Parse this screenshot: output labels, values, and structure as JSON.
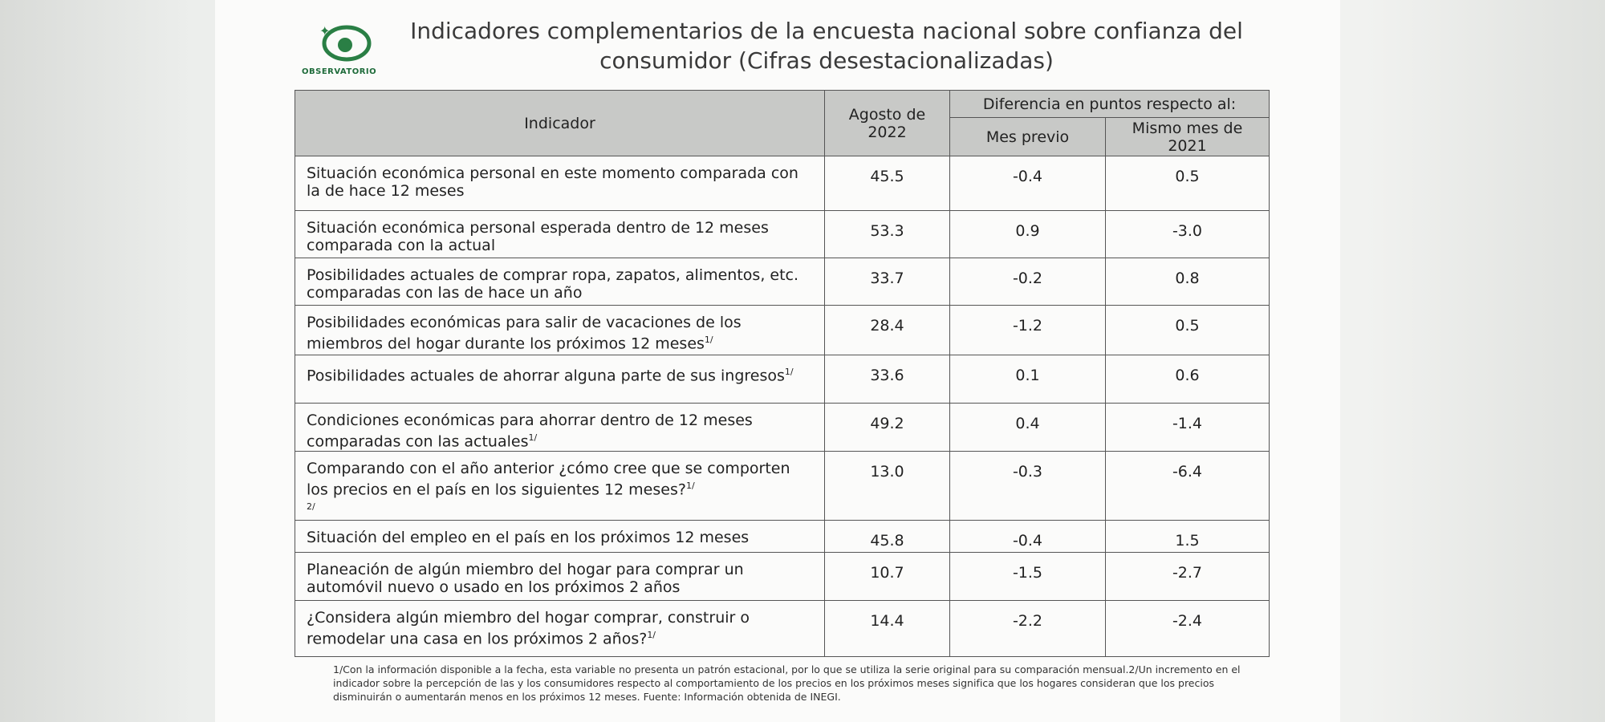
{
  "header": {
    "logo": "OBSERVATORIO",
    "title": "Indicadores complementarios de la encuesta nacional sobre confianza del consumidor (Cifras desestacionalizadas)"
  },
  "table": {
    "columns": {
      "indicator": "Indicador",
      "current": "Agosto de 2022",
      "group": "Diferencia en puntos respecto al:",
      "previous": "Mes previo",
      "year": "Mismo mes de 2021"
    },
    "rows": [
      {
        "indicator": "Situación económica personal en este momento comparada con la de hace 12 meses",
        "notes": [],
        "current": "45.5",
        "previous": "-0.4",
        "year": "0.5"
      },
      {
        "indicator": "Situación económica personal esperada dentro de 12 meses comparada con la actual",
        "notes": [],
        "current": "53.3",
        "previous": "0.9",
        "year": "-3.0"
      },
      {
        "indicator": "Posibilidades actuales de comprar ropa, zapatos, alimentos, etc. comparadas con las de hace un año",
        "notes": [],
        "current": "33.7",
        "previous": "-0.2",
        "year": "0.8"
      },
      {
        "indicator": "Posibilidades económicas para salir de vacaciones de los miembros del hogar durante los próximos 12 meses",
        "notes": [
          "1/"
        ],
        "current": "28.4",
        "previous": "-1.2",
        "year": "0.5"
      },
      {
        "indicator": "Posibilidades actuales de ahorrar alguna parte de sus ingresos",
        "notes": [
          "1/"
        ],
        "current": "33.6",
        "previous": "0.1",
        "year": "0.6"
      },
      {
        "indicator": "Condiciones económicas para ahorrar dentro de 12 meses comparadas con las actuales",
        "notes": [
          "1/"
        ],
        "current": "49.2",
        "previous": "0.4",
        "year": "-1.4"
      },
      {
        "indicator": "Comparando con el año anterior ¿cómo cree que se comporten los precios en el país en los siguientes 12 meses?",
        "notes": [
          "1/",
          "2/"
        ],
        "current": "13.0",
        "previous": "-0.3",
        "year": "-6.4"
      },
      {
        "indicator": "Situación del empleo en el país en los próximos 12 meses",
        "notes": [],
        "current": "45.8",
        "previous": "-0.4",
        "year": "1.5"
      },
      {
        "indicator": "Planeación de algún miembro del hogar para comprar un automóvil nuevo o usado en los próximos 2 años",
        "notes": [],
        "current": "10.7",
        "previous": "-1.5",
        "year": "-2.7"
      },
      {
        "indicator": "¿Considera algún miembro del hogar comprar, construir o remodelar una casa en los próximos 2 años?",
        "notes": [
          "1/"
        ],
        "current": "14.4",
        "previous": "-2.2",
        "year": "-2.4"
      }
    ]
  },
  "footnote": "1/Con la información disponible a la fecha, esta variable no presenta un patrón estacional, por lo que se utiliza la serie original para su comparación mensual.2/Un incremento en el indicador sobre la percepción de las y los consumidores respecto al comportamiento de los precios en los próximos meses significa que los hogares consideran que los precios disminuirán o aumentarán menos en los próximos 12 meses. Fuente: Información obtenida de INEGI."
}
